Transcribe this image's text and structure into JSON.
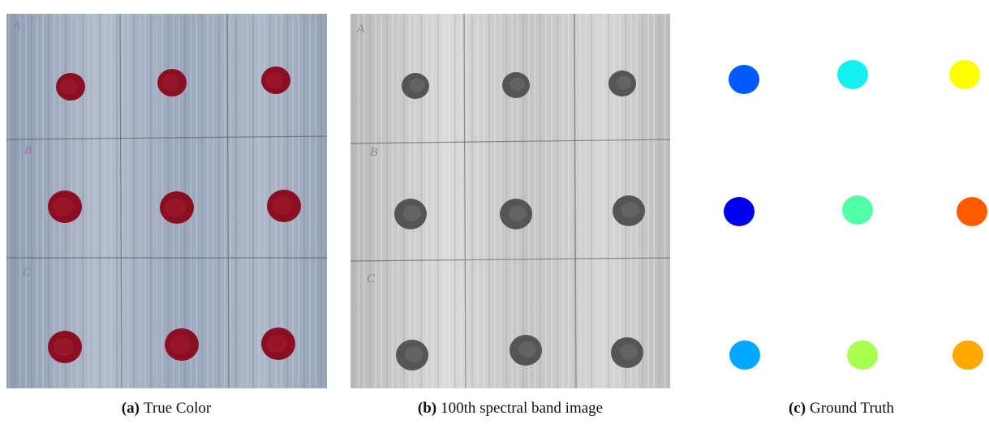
{
  "figure": {
    "panels": [
      {
        "label": "(a)",
        "caption": "True Color",
        "row_marks": [
          "A",
          "B",
          "C"
        ]
      },
      {
        "label": "(b)",
        "caption": "100th spectral band image",
        "row_marks": [
          "A",
          "B",
          "C"
        ]
      },
      {
        "label": "(c)",
        "caption": "Ground Truth"
      }
    ]
  }
}
